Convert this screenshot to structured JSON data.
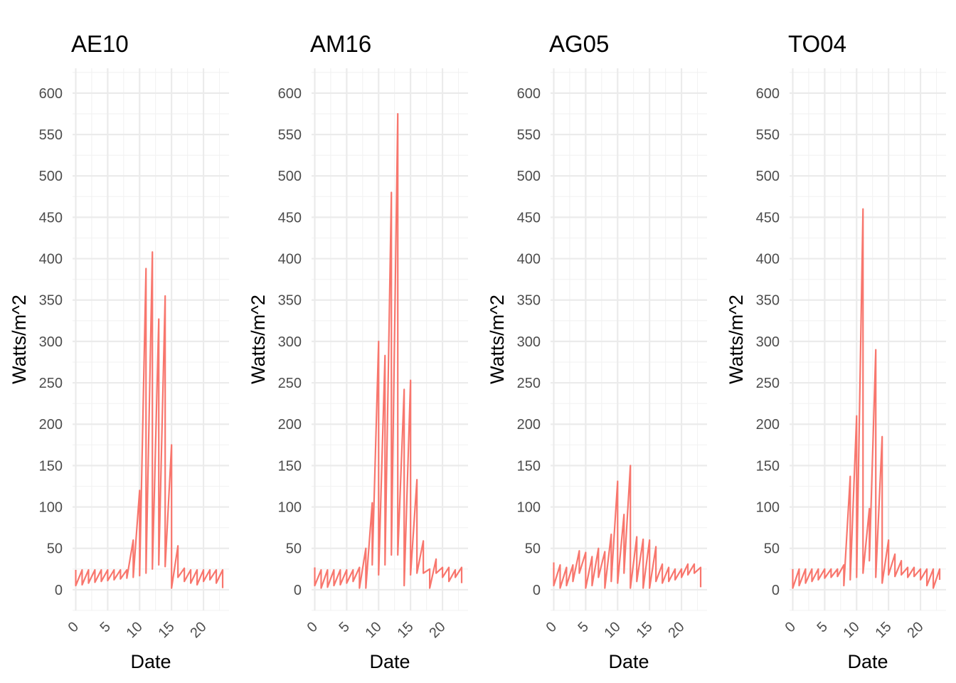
{
  "chart_data": [
    {
      "type": "line",
      "title": "AE10",
      "xlabel": "Date",
      "ylabel": "Watts/m^2",
      "xlim": [
        -0.5,
        24
      ],
      "ylim": [
        -25,
        630
      ],
      "x_ticks": [
        0,
        5,
        10,
        15,
        20
      ],
      "x_tick_labels": [
        "0",
        "5",
        "10",
        "15",
        "20"
      ],
      "y_ticks": [
        0,
        50,
        100,
        150,
        200,
        250,
        300,
        350,
        400,
        450,
        500,
        550,
        600
      ],
      "y_tick_labels": [
        "0",
        "50",
        "100",
        "150",
        "200",
        "250",
        "300",
        "350",
        "400",
        "450",
        "500",
        "550",
        "600"
      ],
      "grid": true,
      "color": "#f8766d",
      "series": [
        {
          "x": [
            0,
            0,
            1,
            1,
            2,
            2,
            3,
            3,
            4,
            4,
            5,
            5,
            6,
            6,
            7,
            7,
            8,
            8,
            9,
            9,
            10,
            10,
            11,
            11,
            12,
            12,
            13,
            13,
            14,
            14,
            15,
            15,
            16,
            16,
            17,
            17,
            18,
            18,
            19,
            19,
            20,
            20,
            21,
            21,
            22,
            22,
            23,
            23
          ],
          "y": [
            24,
            5,
            24,
            6,
            24,
            8,
            24,
            9,
            24,
            10,
            24,
            11,
            24,
            12,
            24,
            13,
            24,
            14,
            60,
            15,
            120,
            17,
            388,
            20,
            408,
            25,
            327,
            30,
            355,
            28,
            175,
            2,
            53,
            15,
            26,
            10,
            24,
            8,
            24,
            6,
            24,
            10,
            24,
            12,
            24,
            8,
            24,
            2
          ]
        }
      ]
    },
    {
      "type": "line",
      "title": "AM16",
      "xlabel": "Date",
      "ylabel": "Watts/m^2",
      "xlim": [
        -0.5,
        24
      ],
      "ylim": [
        -25,
        630
      ],
      "x_ticks": [
        0,
        5,
        10,
        15,
        20
      ],
      "x_tick_labels": [
        "0",
        "5",
        "10",
        "15",
        "20"
      ],
      "y_ticks": [
        0,
        50,
        100,
        150,
        200,
        250,
        300,
        350,
        400,
        450,
        500,
        550,
        600
      ],
      "y_tick_labels": [
        "0",
        "50",
        "100",
        "150",
        "200",
        "250",
        "300",
        "350",
        "400",
        "450",
        "500",
        "550",
        "600"
      ],
      "grid": true,
      "color": "#f8766d",
      "series": [
        {
          "x": [
            0,
            0,
            1,
            1,
            2,
            2,
            3,
            3,
            4,
            4,
            5,
            5,
            6,
            6,
            7,
            7,
            8,
            8,
            9,
            9,
            10,
            10,
            11,
            11,
            12,
            12,
            13,
            13,
            14,
            14,
            15,
            15,
            16,
            16,
            17,
            17,
            18,
            18,
            19,
            19,
            20,
            20,
            21,
            21,
            22,
            22,
            23,
            23
          ],
          "y": [
            27,
            5,
            24,
            2,
            24,
            3,
            24,
            5,
            24,
            6,
            24,
            8,
            24,
            10,
            27,
            2,
            50,
            2,
            105,
            30,
            300,
            18,
            283,
            30,
            480,
            42,
            575,
            42,
            242,
            5,
            253,
            18,
            133,
            20,
            59,
            20,
            25,
            2,
            37,
            20,
            27,
            15,
            27,
            10,
            24,
            15,
            27,
            8
          ]
        }
      ]
    },
    {
      "type": "line",
      "title": "AG05",
      "xlabel": "Date",
      "ylabel": "Watts/m^2",
      "xlim": [
        -0.5,
        24
      ],
      "ylim": [
        -25,
        630
      ],
      "x_ticks": [
        0,
        5,
        10,
        15,
        20
      ],
      "x_tick_labels": [
        "0",
        "5",
        "10",
        "15",
        "20"
      ],
      "y_ticks": [
        0,
        50,
        100,
        150,
        200,
        250,
        300,
        350,
        400,
        450,
        500,
        550,
        600
      ],
      "y_tick_labels": [
        "0",
        "50",
        "100",
        "150",
        "200",
        "250",
        "300",
        "350",
        "400",
        "450",
        "500",
        "550",
        "600"
      ],
      "grid": true,
      "color": "#f8766d",
      "series": [
        {
          "x": [
            0,
            0,
            1,
            1,
            2,
            2,
            3,
            3,
            4,
            4,
            5,
            5,
            6,
            6,
            7,
            7,
            8,
            8,
            9,
            9,
            10,
            10,
            11,
            11,
            12,
            12,
            13,
            13,
            14,
            14,
            15,
            15,
            16,
            16,
            17,
            17,
            18,
            18,
            19,
            19,
            20,
            20,
            21,
            21,
            22,
            22,
            23,
            23
          ],
          "y": [
            33,
            5,
            30,
            2,
            27,
            5,
            30,
            10,
            47,
            20,
            45,
            2,
            40,
            5,
            50,
            15,
            46,
            2,
            67,
            10,
            131,
            8,
            91,
            20,
            150,
            2,
            64,
            10,
            61,
            2,
            60,
            2,
            52,
            10,
            31,
            8,
            27,
            10,
            25,
            12,
            25,
            15,
            31,
            18,
            31,
            20,
            27,
            3
          ]
        }
      ]
    },
    {
      "type": "line",
      "title": "TO04",
      "xlabel": "Date",
      "ylabel": "Watts/m^2",
      "xlim": [
        -0.5,
        24
      ],
      "ylim": [
        -25,
        630
      ],
      "x_ticks": [
        0,
        5,
        10,
        15,
        20
      ],
      "x_tick_labels": [
        "0",
        "5",
        "10",
        "15",
        "20"
      ],
      "y_ticks": [
        0,
        50,
        100,
        150,
        200,
        250,
        300,
        350,
        400,
        450,
        500,
        550,
        600
      ],
      "y_tick_labels": [
        "0",
        "50",
        "100",
        "150",
        "200",
        "250",
        "300",
        "350",
        "400",
        "450",
        "500",
        "550",
        "600"
      ],
      "grid": true,
      "color": "#f8766d",
      "series": [
        {
          "x": [
            0,
            0,
            1,
            1,
            2,
            2,
            3,
            3,
            4,
            4,
            5,
            5,
            6,
            6,
            7,
            7,
            8,
            8,
            9,
            9,
            10,
            10,
            11,
            11,
            12,
            12,
            13,
            13,
            14,
            14,
            15,
            15,
            16,
            16,
            17,
            17,
            18,
            18,
            19,
            19,
            20,
            20,
            21,
            21,
            22,
            22,
            23,
            23
          ],
          "y": [
            25,
            2,
            25,
            5,
            25,
            8,
            25,
            10,
            25,
            12,
            25,
            14,
            25,
            15,
            25,
            16,
            30,
            5,
            137,
            12,
            210,
            15,
            460,
            20,
            98,
            35,
            290,
            15,
            185,
            8,
            60,
            18,
            43,
            16,
            35,
            18,
            27,
            15,
            27,
            16,
            25,
            12,
            25,
            5,
            25,
            2,
            25,
            12
          ]
        }
      ]
    }
  ]
}
